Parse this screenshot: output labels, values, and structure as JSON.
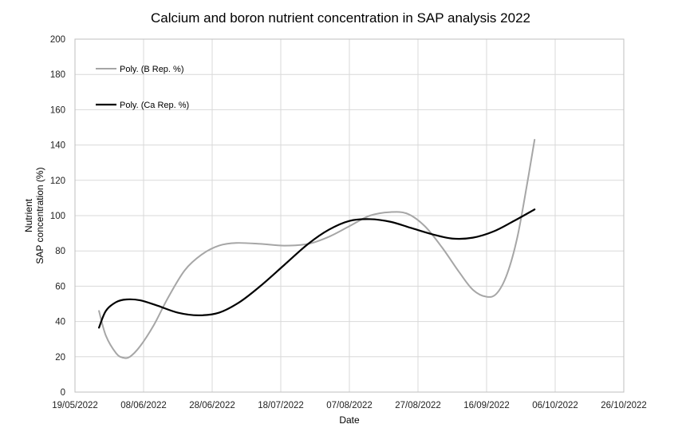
{
  "chart_data": {
    "type": "line",
    "title": "Calcium and boron nutrient concentration in SAP analysis 2022",
    "xlabel": "Date",
    "ylabel_line1": "Nutrient",
    "ylabel_line2": "SAP concentration (%)",
    "x_tick_labels": [
      "19/05/2022",
      "08/06/2022",
      "28/06/2022",
      "18/07/2022",
      "07/08/2022",
      "27/08/2022",
      "16/09/2022",
      "06/10/2022",
      "26/10/2022"
    ],
    "xlim": [
      "2022-05-19",
      "2022-10-26"
    ],
    "ylim": [
      0,
      200
    ],
    "y_ticks": [
      0,
      20,
      40,
      60,
      80,
      100,
      120,
      140,
      160,
      180,
      200
    ],
    "grid": true,
    "legend_position": "top-left",
    "series": [
      {
        "name": "Poly. (B Rep. %)",
        "color": "#a6a6a6",
        "x": [
          "2022-05-26",
          "2022-05-28",
          "2022-05-31",
          "2022-06-02",
          "2022-06-04",
          "2022-06-07",
          "2022-06-11",
          "2022-06-15",
          "2022-06-20",
          "2022-06-25",
          "2022-06-30",
          "2022-07-05",
          "2022-07-12",
          "2022-07-19",
          "2022-07-26",
          "2022-08-01",
          "2022-08-07",
          "2022-08-13",
          "2022-08-19",
          "2022-08-24",
          "2022-08-29",
          "2022-09-03",
          "2022-09-08",
          "2022-09-12",
          "2022-09-16",
          "2022-09-19",
          "2022-09-22",
          "2022-09-25",
          "2022-09-28",
          "2022-09-30"
        ],
        "values": [
          46,
          32,
          22,
          19.5,
          20,
          26,
          38,
          53,
          69,
          78,
          83,
          84.5,
          84,
          83,
          84,
          88,
          94,
          100,
          102,
          101,
          94,
          82,
          68,
          58,
          54,
          56,
          67,
          88,
          120,
          143
        ]
      },
      {
        "name": "Poly. (Ca Rep. %)",
        "color": "#000000",
        "x": [
          "2022-05-26",
          "2022-05-28",
          "2022-05-31",
          "2022-06-03",
          "2022-06-07",
          "2022-06-12",
          "2022-06-18",
          "2022-06-24",
          "2022-06-30",
          "2022-07-06",
          "2022-07-12",
          "2022-07-19",
          "2022-07-26",
          "2022-08-01",
          "2022-08-07",
          "2022-08-13",
          "2022-08-19",
          "2022-08-25",
          "2022-08-31",
          "2022-09-06",
          "2022-09-12",
          "2022-09-18",
          "2022-09-24",
          "2022-09-30"
        ],
        "values": [
          36.5,
          46,
          51,
          52.5,
          52,
          49,
          45,
          43.5,
          45,
          51,
          60,
          72,
          84,
          92,
          97,
          98,
          96.5,
          93,
          89.5,
          87,
          87.5,
          91,
          97,
          103.5
        ]
      }
    ]
  }
}
